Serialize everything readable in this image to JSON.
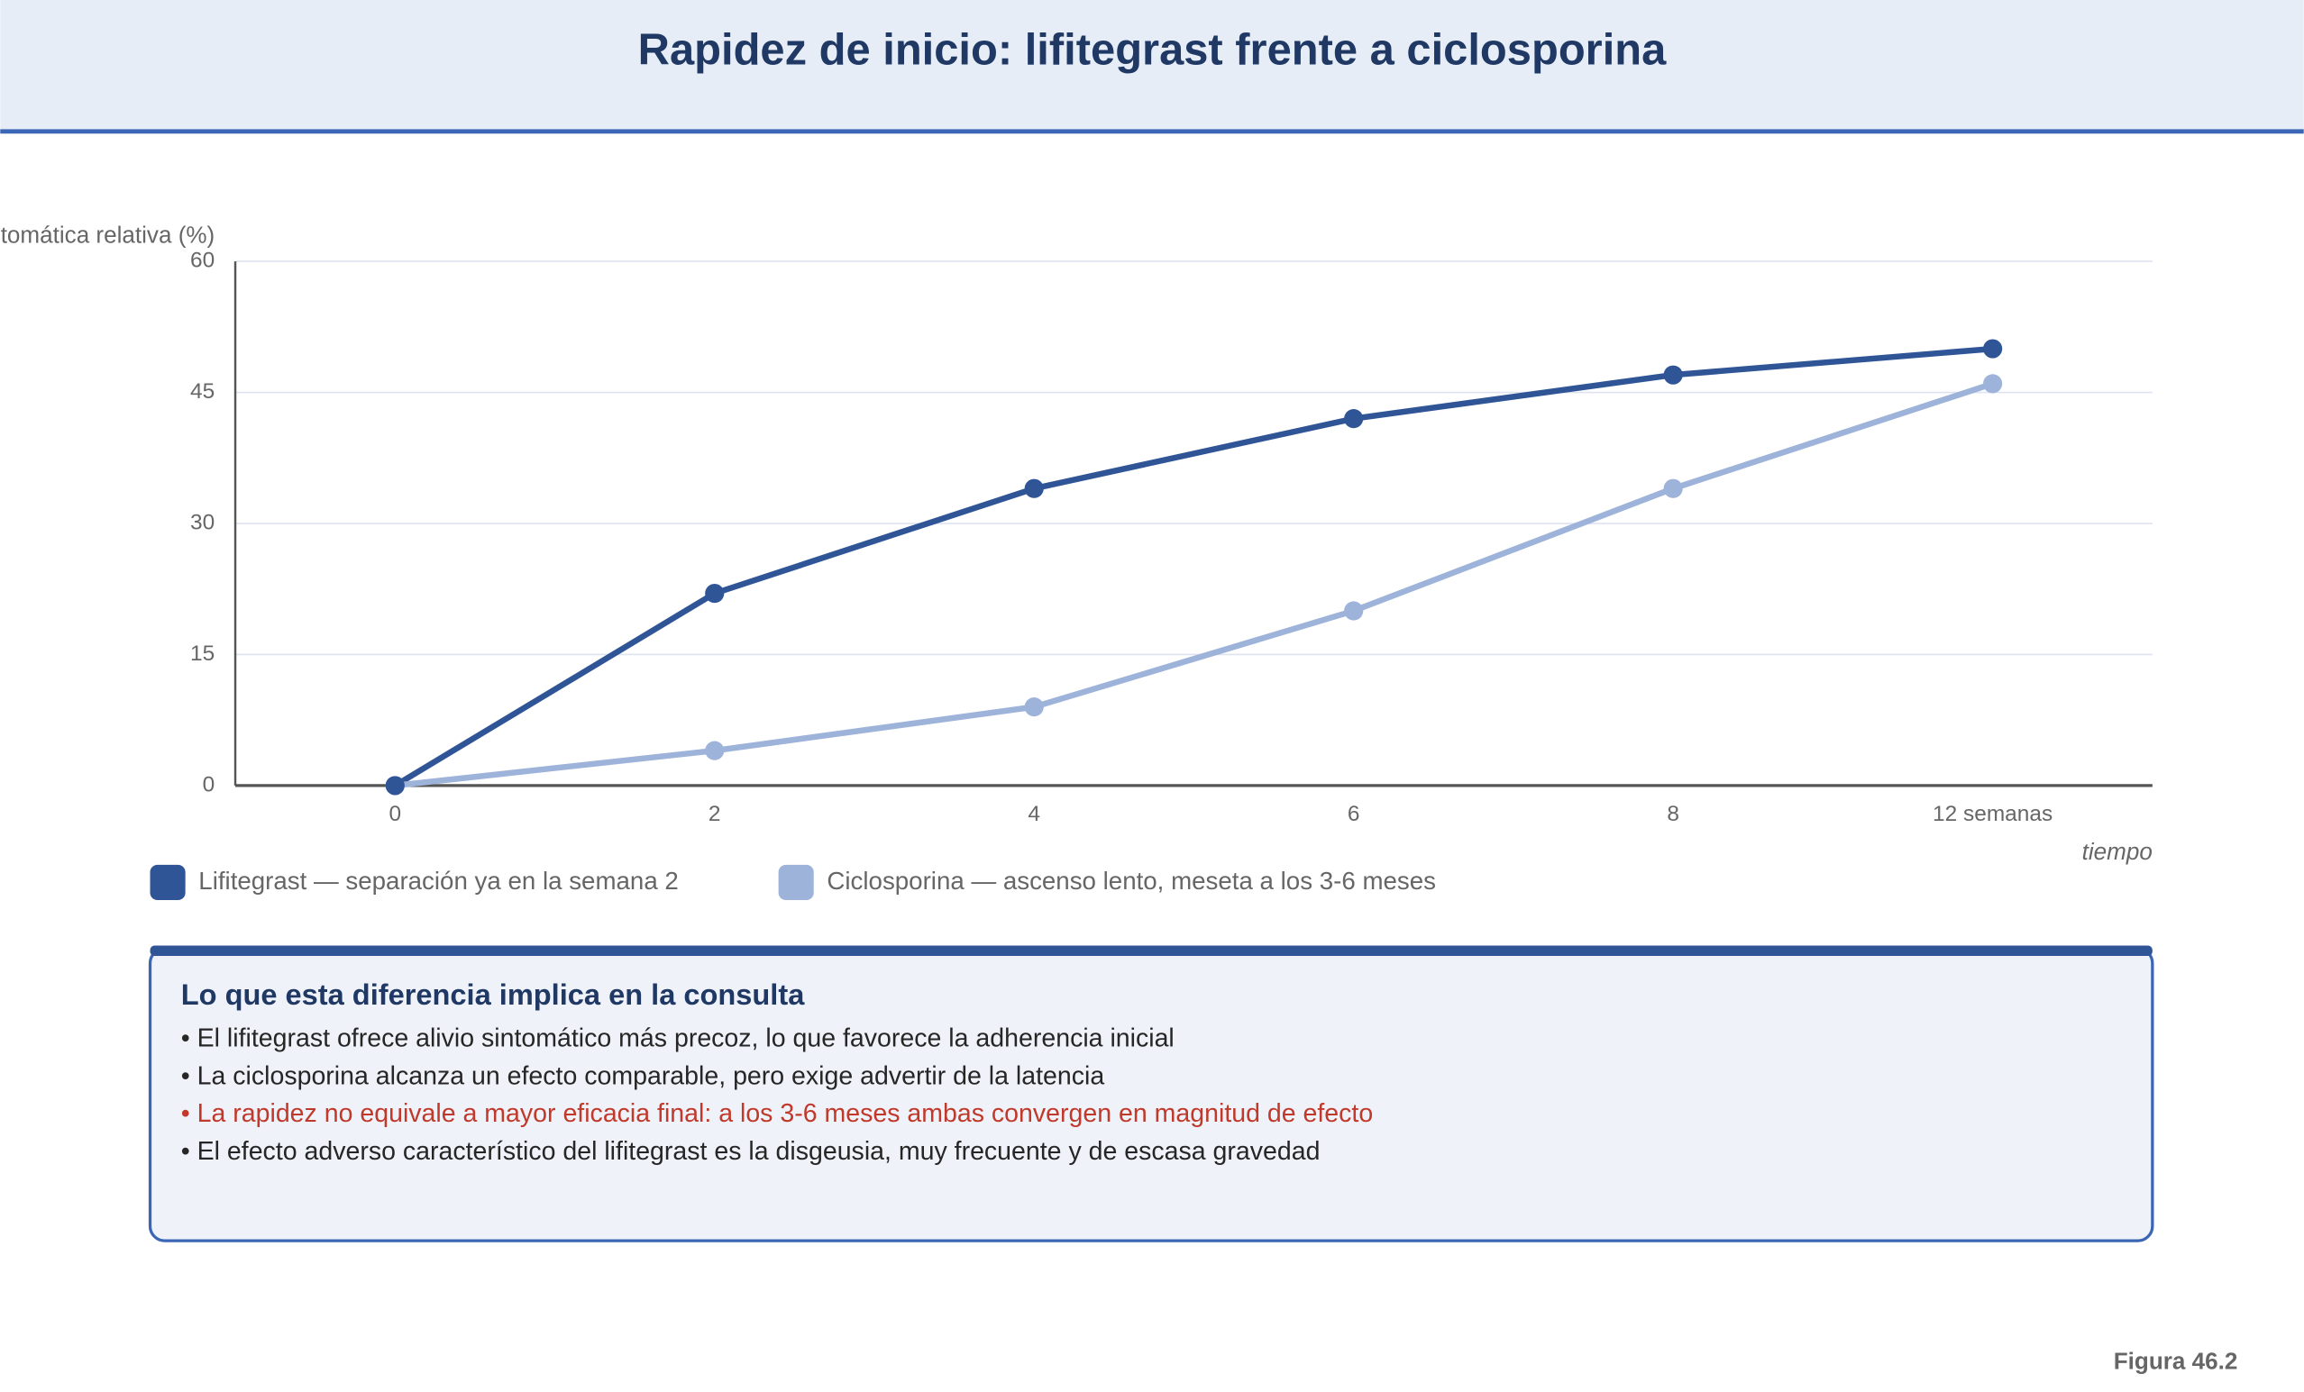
{
  "header": {
    "title": "Rapidez de inicio: lifitegrast frente a ciclosporina"
  },
  "chart_data": {
    "type": "line",
    "ylabel": "Mejoría sintomática relativa (%)",
    "xlabel": "tiempo",
    "categories": [
      "0",
      "2",
      "4",
      "6",
      "8",
      "12 semanas"
    ],
    "series": [
      {
        "name": "Lifitegrast — separación ya en la semana 2",
        "color": "#2f5597",
        "values": [
          0,
          22,
          34,
          42,
          47,
          50
        ]
      },
      {
        "name": "Ciclosporina — ascenso lento, meseta a los 3-6 meses",
        "color": "#9db3d9",
        "values": [
          0,
          4,
          9,
          20,
          34,
          46
        ]
      }
    ],
    "ylim": [
      0,
      60
    ],
    "yticks": [
      0,
      15,
      30,
      45,
      60
    ],
    "grid": true
  },
  "callout": {
    "title": "Lo que esta diferencia implica en la consulta",
    "items": [
      {
        "text": "• El lifitegrast ofrece alivio sintomático más precoz, lo que favorece la adherencia inicial",
        "color": "#262626"
      },
      {
        "text": "• La ciclosporina alcanza un efecto comparable, pero exige advertir de la latencia",
        "color": "#262626"
      },
      {
        "text": "• La rapidez no equivale a mayor eficacia final: a los 3-6 meses ambas convergen en magnitud de efecto",
        "color": "#c0392b"
      },
      {
        "text": "• El efecto adverso característico del lifitegrast es la disgeusia, muy frecuente y de escasa gravedad",
        "color": "#262626"
      }
    ]
  },
  "footer": {
    "figure": "Figura 46.2"
  }
}
